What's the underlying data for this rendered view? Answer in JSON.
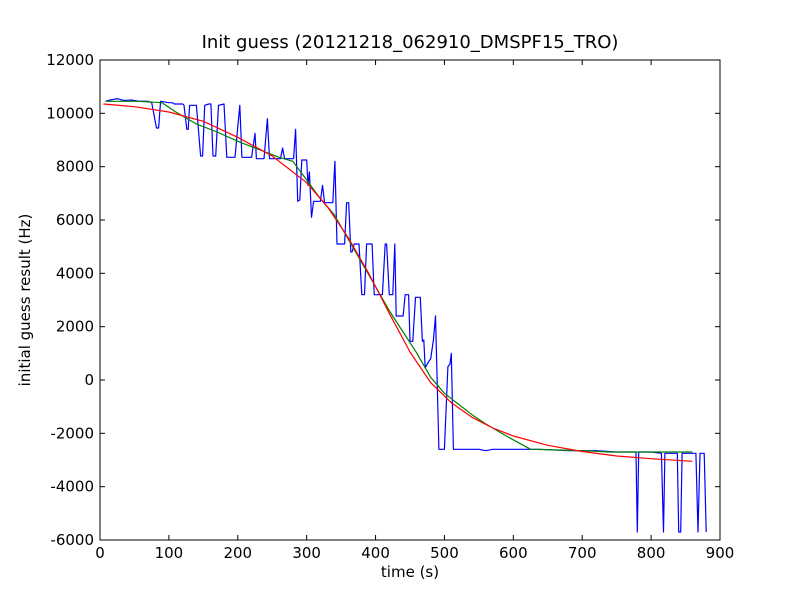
{
  "chart_data": {
    "type": "line",
    "title": "Init guess (20121218_062910_DMSPF15_TRO)",
    "xlabel": "time (s)",
    "ylabel": "initial guess result (Hz)",
    "xlim": [
      0,
      900
    ],
    "ylim": [
      -6000,
      12000
    ],
    "x_ticks": [
      0,
      100,
      200,
      300,
      400,
      500,
      600,
      700,
      800,
      900
    ],
    "y_ticks": [
      -6000,
      -4000,
      -2000,
      0,
      2000,
      4000,
      6000,
      8000,
      10000,
      12000
    ],
    "grid": false,
    "legend": "none",
    "series": [
      {
        "color": "#0000ff",
        "points": [
          [
            8,
            10450
          ],
          [
            15,
            10500
          ],
          [
            25,
            10550
          ],
          [
            35,
            10480
          ],
          [
            45,
            10500
          ],
          [
            55,
            10460
          ],
          [
            70,
            10450
          ],
          [
            75,
            10400
          ],
          [
            82,
            9450
          ],
          [
            85,
            9450
          ],
          [
            88,
            10450
          ],
          [
            100,
            10400
          ],
          [
            105,
            10400
          ],
          [
            108,
            10350
          ],
          [
            112,
            10350
          ],
          [
            118,
            10350
          ],
          [
            120,
            10350
          ],
          [
            122,
            10300
          ],
          [
            126,
            9400
          ],
          [
            128,
            9400
          ],
          [
            130,
            10300
          ],
          [
            140,
            10300
          ],
          [
            146,
            8400
          ],
          [
            149,
            8400
          ],
          [
            152,
            10300
          ],
          [
            158,
            10350
          ],
          [
            161,
            10350
          ],
          [
            164,
            8400
          ],
          [
            168,
            8400
          ],
          [
            172,
            10300
          ],
          [
            180,
            10350
          ],
          [
            184,
            8350
          ],
          [
            196,
            8350
          ],
          [
            200,
            9500
          ],
          [
            203,
            10300
          ],
          [
            206,
            8350
          ],
          [
            220,
            8350
          ],
          [
            225,
            9250
          ],
          [
            227,
            8300
          ],
          [
            238,
            8300
          ],
          [
            243,
            9800
          ],
          [
            246,
            8300
          ],
          [
            262,
            8300
          ],
          [
            265,
            8700
          ],
          [
            268,
            8300
          ],
          [
            281,
            8300
          ],
          [
            284,
            9400
          ],
          [
            287,
            6700
          ],
          [
            290,
            6750
          ],
          [
            293,
            8250
          ],
          [
            300,
            8250
          ],
          [
            302,
            7300
          ],
          [
            304,
            7800
          ],
          [
            307,
            6100
          ],
          [
            310,
            6700
          ],
          [
            320,
            6700
          ],
          [
            323,
            7300
          ],
          [
            326,
            6650
          ],
          [
            338,
            6650
          ],
          [
            341,
            8200
          ],
          [
            344,
            5100
          ],
          [
            355,
            5100
          ],
          [
            358,
            6650
          ],
          [
            361,
            6650
          ],
          [
            364,
            4800
          ],
          [
            366,
            4800
          ],
          [
            369,
            5100
          ],
          [
            376,
            5100
          ],
          [
            380,
            3200
          ],
          [
            384,
            3200
          ],
          [
            387,
            5100
          ],
          [
            395,
            5100
          ],
          [
            398,
            3200
          ],
          [
            410,
            3200
          ],
          [
            414,
            5100
          ],
          [
            416,
            5100
          ],
          [
            420,
            3200
          ],
          [
            425,
            3200
          ],
          [
            428,
            5100
          ],
          [
            430,
            2400
          ],
          [
            432,
            2400
          ],
          [
            440,
            2400
          ],
          [
            443,
            3200
          ],
          [
            448,
            3200
          ],
          [
            450,
            1450
          ],
          [
            454,
            1450
          ],
          [
            458,
            3100
          ],
          [
            465,
            3100
          ],
          [
            468,
            1450
          ],
          [
            470,
            1500
          ],
          [
            472,
            450
          ],
          [
            475,
            600
          ],
          [
            480,
            800
          ],
          [
            484,
            1500
          ],
          [
            487,
            2400
          ],
          [
            492,
            -2600
          ],
          [
            500,
            -2600
          ],
          [
            505,
            500
          ],
          [
            508,
            600
          ],
          [
            510,
            1000
          ],
          [
            513,
            -2600
          ],
          [
            550,
            -2600
          ],
          [
            560,
            -2650
          ],
          [
            570,
            -2600
          ],
          [
            610,
            -2600
          ],
          [
            640,
            -2600
          ],
          [
            680,
            -2650
          ],
          [
            720,
            -2650
          ],
          [
            750,
            -2700
          ],
          [
            778,
            -2700
          ],
          [
            780,
            -5700
          ],
          [
            782,
            -2700
          ],
          [
            800,
            -2700
          ],
          [
            815,
            -2750
          ],
          [
            818,
            -5700
          ],
          [
            820,
            -2750
          ],
          [
            838,
            -2750
          ],
          [
            840,
            -5700
          ],
          [
            843,
            -5700
          ],
          [
            845,
            -2750
          ],
          [
            865,
            -2750
          ],
          [
            868,
            -5700
          ],
          [
            871,
            -2750
          ],
          [
            877,
            -2750
          ],
          [
            880,
            -5700
          ]
        ]
      },
      {
        "color": "#008000",
        "points": [
          [
            8,
            10450
          ],
          [
            55,
            10450
          ],
          [
            90,
            10400
          ],
          [
            110,
            10050
          ],
          [
            140,
            9600
          ],
          [
            170,
            9300
          ],
          [
            200,
            8950
          ],
          [
            230,
            8650
          ],
          [
            260,
            8350
          ],
          [
            280,
            8200
          ],
          [
            300,
            7500
          ],
          [
            320,
            6800
          ],
          [
            340,
            6200
          ],
          [
            360,
            5300
          ],
          [
            380,
            4400
          ],
          [
            400,
            3500
          ],
          [
            420,
            2600
          ],
          [
            440,
            1800
          ],
          [
            460,
            1000
          ],
          [
            480,
            100
          ],
          [
            500,
            -500
          ],
          [
            520,
            -900
          ],
          [
            540,
            -1300
          ],
          [
            560,
            -1650
          ],
          [
            590,
            -2100
          ],
          [
            625,
            -2600
          ],
          [
            660,
            -2620
          ],
          [
            700,
            -2650
          ],
          [
            740,
            -2700
          ],
          [
            780,
            -2700
          ],
          [
            860,
            -2700
          ]
        ]
      },
      {
        "color": "#ff0000",
        "points": [
          [
            5,
            10350
          ],
          [
            50,
            10250
          ],
          [
            100,
            10050
          ],
          [
            150,
            9700
          ],
          [
            200,
            9100
          ],
          [
            250,
            8400
          ],
          [
            300,
            7400
          ],
          [
            330,
            6500
          ],
          [
            360,
            5350
          ],
          [
            390,
            4000
          ],
          [
            420,
            2500
          ],
          [
            450,
            1050
          ],
          [
            480,
            -100
          ],
          [
            510,
            -850
          ],
          [
            540,
            -1400
          ],
          [
            570,
            -1800
          ],
          [
            600,
            -2100
          ],
          [
            650,
            -2450
          ],
          [
            700,
            -2680
          ],
          [
            750,
            -2850
          ],
          [
            800,
            -2950
          ],
          [
            860,
            -3050
          ]
        ]
      }
    ]
  }
}
